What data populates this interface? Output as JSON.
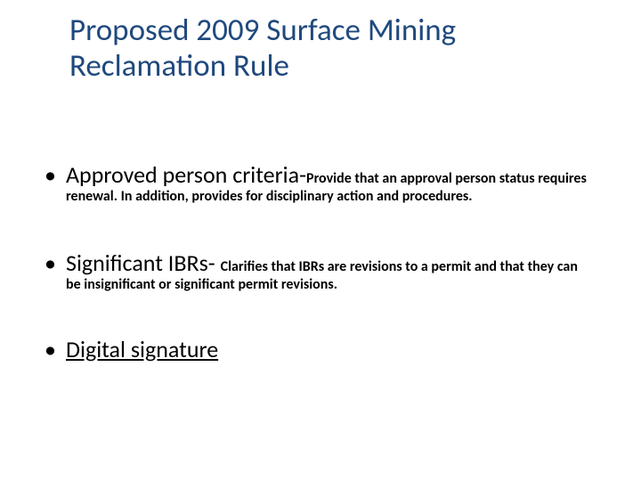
{
  "colors": {
    "title": "#1f497d",
    "body": "#000000",
    "background": "#ffffff"
  },
  "title": "Proposed 2009 Surface Mining Reclamation Rule",
  "bullets": [
    {
      "lead": "Approved person criteria-",
      "detail": "Provide that an approval person status requires renewal.  In addition, provides for disciplinary action and procedures.",
      "underline": false
    },
    {
      "lead": "Significant IBRs- ",
      "detail": "Clarifies that IBRs are revisions to a permit and that they can be insignificant or significant permit  revisions.",
      "underline": false
    },
    {
      "lead": "Digital signature",
      "detail": "",
      "underline": true
    }
  ]
}
